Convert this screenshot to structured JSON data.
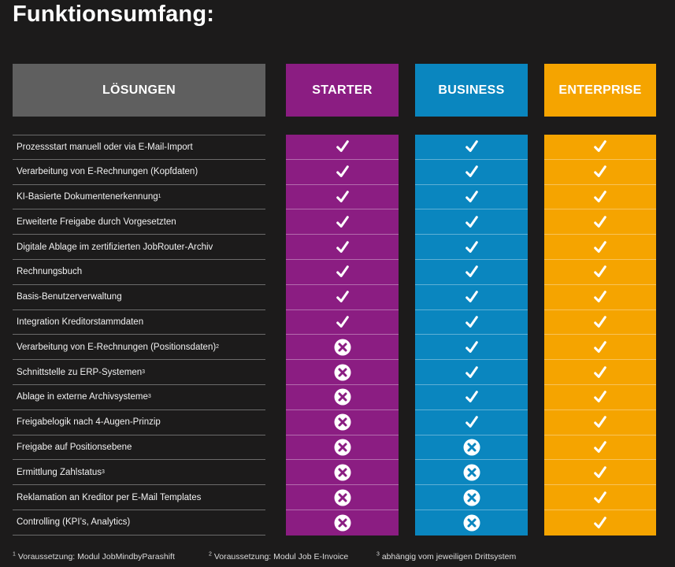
{
  "title": "Funktionsumfang:",
  "columns": {
    "label": "LÖSUNGEN",
    "plans": [
      "STARTER",
      "BUSINESS",
      "ENTERPRISE"
    ]
  },
  "colors": {
    "starter": "#8b1d82",
    "business": "#0a86bf",
    "enterprise": "#f5a400",
    "header_label_bg": "#5f5f5f",
    "background": "#1c1b1b"
  },
  "icons": {
    "included": "checkmark-icon",
    "excluded": "cross-circle-icon"
  },
  "rows": [
    {
      "label": "Prozessstart manuell oder via E-Mail-Import",
      "sup": "",
      "values": [
        true,
        true,
        true
      ]
    },
    {
      "label": "Verarbeitung von E-Rechnungen (Kopfdaten)",
      "sup": "",
      "values": [
        true,
        true,
        true
      ]
    },
    {
      "label": "KI-Basierte Dokumentenerkennung",
      "sup": "1",
      "values": [
        true,
        true,
        true
      ]
    },
    {
      "label": "Erweiterte Freigabe durch Vorgesetzten",
      "sup": "",
      "values": [
        true,
        true,
        true
      ]
    },
    {
      "label": "Digitale Ablage im zertifizierten JobRouter-Archiv",
      "sup": "",
      "values": [
        true,
        true,
        true
      ]
    },
    {
      "label": "Rechnungsbuch",
      "sup": "",
      "values": [
        true,
        true,
        true
      ]
    },
    {
      "label": "Basis-Benutzerverwaltung",
      "sup": "",
      "values": [
        true,
        true,
        true
      ]
    },
    {
      "label": "Integration Kreditorstammdaten",
      "sup": "",
      "values": [
        true,
        true,
        true
      ]
    },
    {
      "label": "Verarbeitung von E-Rechnungen (Positionsdaten)",
      "sup": "2",
      "values": [
        false,
        true,
        true
      ]
    },
    {
      "label": "Schnittstelle zu ERP-Systemen",
      "sup": "3",
      "values": [
        false,
        true,
        true
      ]
    },
    {
      "label": "Ablage in externe Archivsysteme",
      "sup": "3",
      "values": [
        false,
        true,
        true
      ]
    },
    {
      "label": "Freigabelogik nach 4-Augen-Prinzip",
      "sup": "",
      "values": [
        false,
        true,
        true
      ]
    },
    {
      "label": "Freigabe auf Positionsebene",
      "sup": "",
      "values": [
        false,
        false,
        true
      ]
    },
    {
      "label": "Ermittlung Zahlstatus",
      "sup": "3",
      "values": [
        false,
        false,
        true
      ]
    },
    {
      "label": "Reklamation an Kreditor per E-Mail Templates",
      "sup": "",
      "values": [
        false,
        false,
        true
      ]
    },
    {
      "label": "Controlling (KPI’s, Analytics)",
      "sup": "",
      "values": [
        false,
        false,
        true
      ]
    }
  ],
  "footnotes": [
    {
      "sup": "1",
      "text": "Voraussetzung: Modul JobMindbyParashift"
    },
    {
      "sup": "2",
      "text": "Voraussetzung: Modul Job E-Invoice"
    },
    {
      "sup": "3",
      "text": "abhängig vom jeweiligen Drittsystem"
    }
  ]
}
